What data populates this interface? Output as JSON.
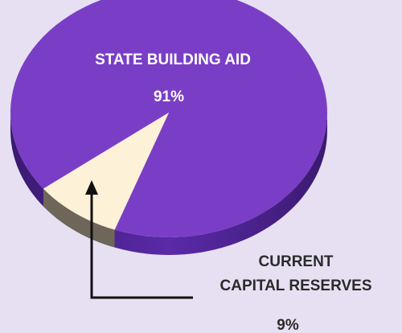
{
  "chart_data": {
    "type": "pie",
    "slices": [
      {
        "label": "STATE BUILDING AID",
        "value": 91,
        "value_label": "91%",
        "color": "#7a3ec6"
      },
      {
        "label_lines": [
          "CURRENT",
          "CAPITAL RESERVES"
        ],
        "value": 9,
        "value_label": "9%",
        "color": "#fdf1d8"
      }
    ],
    "legend": "none",
    "style": "3d"
  }
}
